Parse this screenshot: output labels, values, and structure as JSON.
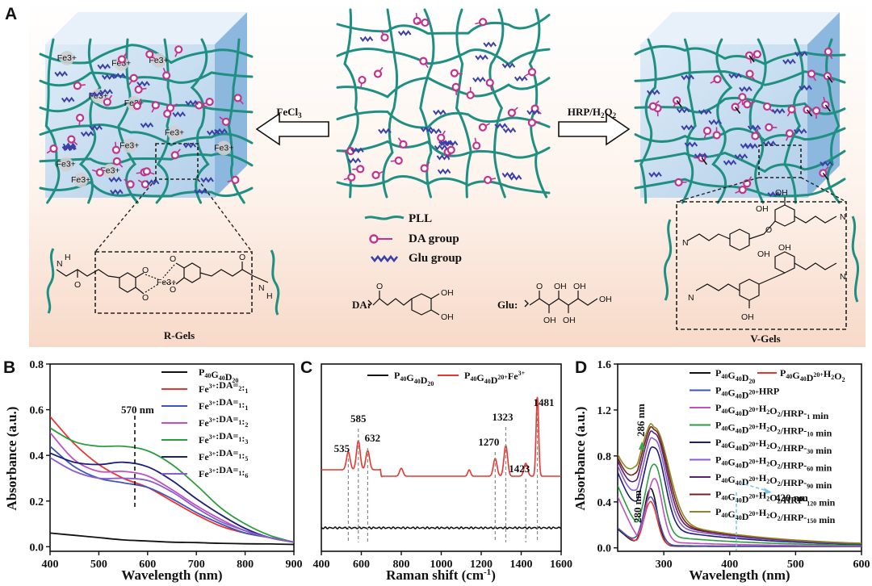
{
  "panel_a": {
    "label": "A",
    "reagent_left": "FeCl3",
    "reagent_right": "HRP/H2O2",
    "left_gel_name": "R-Gels",
    "right_gel_name": "V-Gels",
    "fe_label": "Fe3+",
    "legend": [
      {
        "label": "PLL",
        "color": "#1f8f82"
      },
      {
        "label": "DA group",
        "color": "#c2338f"
      },
      {
        "label": "Glu group",
        "color": "#3b3fa8"
      }
    ],
    "da_label": "DA:",
    "glu_label": "Glu:",
    "chem_text": {
      "oh": "OH",
      "o": "O",
      "h": "H",
      "n": "N",
      "fe": "Fe3+"
    }
  },
  "chart_data": [
    {
      "panel": "B",
      "type": "line",
      "xlabel": "Wavelength (nm)",
      "ylabel": "Absorbance (a.u.)",
      "xlim": [
        400,
        900
      ],
      "ylim": [
        -0.02,
        0.8
      ],
      "xticks": [
        "400",
        "500",
        "600",
        "700",
        "800",
        "900"
      ],
      "yticks": [
        "0.0",
        "0.2",
        "0.4",
        "0.6",
        "0.8"
      ],
      "annotation": "570 nm",
      "annotation_x": 570,
      "legend_position": "top-right",
      "x": [
        400,
        450,
        500,
        550,
        600,
        650,
        700,
        750,
        800,
        850,
        900
      ],
      "series": [
        {
          "name": "P40G40D20",
          "color": "#111111",
          "values": [
            0.06,
            0.05,
            0.04,
            0.03,
            0.025,
            0.02,
            0.018,
            0.015,
            0.013,
            0.012,
            0.01
          ]
        },
        {
          "name": "Fe3+:DA=2:1",
          "color": "#e8362f",
          "values": [
            0.57,
            0.45,
            0.36,
            0.3,
            0.26,
            0.2,
            0.14,
            0.09,
            0.06,
            0.04,
            0.02
          ]
        },
        {
          "name": "Fe3+:DA=1:1",
          "color": "#3d56b8",
          "values": [
            0.44,
            0.35,
            0.3,
            0.28,
            0.26,
            0.21,
            0.15,
            0.1,
            0.06,
            0.04,
            0.02
          ]
        },
        {
          "name": "Fe3+:DA=1:2",
          "color": "#c04fc0",
          "values": [
            0.5,
            0.38,
            0.33,
            0.33,
            0.31,
            0.25,
            0.18,
            0.12,
            0.07,
            0.04,
            0.02
          ]
        },
        {
          "name": "Fe3+:DA=1:3",
          "color": "#2a9d3f",
          "values": [
            0.52,
            0.46,
            0.44,
            0.44,
            0.42,
            0.36,
            0.27,
            0.17,
            0.1,
            0.05,
            0.02
          ]
        },
        {
          "name": "Fe3+:DA=1:5",
          "color": "#1b1f7a",
          "values": [
            0.41,
            0.37,
            0.36,
            0.37,
            0.35,
            0.29,
            0.21,
            0.14,
            0.08,
            0.04,
            0.02
          ]
        },
        {
          "name": "Fe3+:DA=1:6",
          "color": "#8b5ccf",
          "values": [
            0.39,
            0.33,
            0.3,
            0.3,
            0.29,
            0.24,
            0.17,
            0.11,
            0.07,
            0.04,
            0.02
          ]
        }
      ]
    },
    {
      "panel": "C",
      "type": "line",
      "xlabel": "Raman shift (cm-1)",
      "ylabel": "",
      "xlim": [
        400,
        1600
      ],
      "xticks": [
        "400",
        "600",
        "800",
        "1000",
        "1200",
        "1400",
        "1600"
      ],
      "legend_position": "top",
      "series": [
        {
          "name": "P40G40D20",
          "color": "#111111"
        },
        {
          "name": "P40G40D20+Fe3+",
          "color": "#e8362f"
        }
      ],
      "peaks": [
        {
          "x": 535,
          "label": "535"
        },
        {
          "x": 585,
          "label": "585"
        },
        {
          "x": 632,
          "label": "632"
        },
        {
          "x": 1270,
          "label": "1270"
        },
        {
          "x": 1323,
          "label": "1323"
        },
        {
          "x": 1423,
          "label": "1423"
        },
        {
          "x": 1481,
          "label": "1481"
        }
      ]
    },
    {
      "panel": "D",
      "type": "line",
      "xlabel": "Wavelength (nm)",
      "ylabel": "Absorbance (a.u.)",
      "xlim": [
        230,
        600
      ],
      "ylim": [
        -0.03,
        1.6
      ],
      "xticks": [
        "300",
        "400",
        "500",
        "600"
      ],
      "yticks": [
        "0.0",
        "0.4",
        "0.8",
        "1.2",
        "1.6"
      ],
      "annotations": [
        {
          "text": "286 nm",
          "x": 286
        },
        {
          "text": "280 nm",
          "x": 280
        },
        {
          "text": "420 nm",
          "x": 420
        }
      ],
      "legend_position": "top-right",
      "series": [
        {
          "name": "P40G40D20",
          "color": "#111111"
        },
        {
          "name": "P40G40D20+H2O2",
          "color": "#e8362f"
        },
        {
          "name": "P40G40D20+HRP",
          "color": "#3d56b8"
        },
        {
          "name": "P40G40D20+H2O2/HRP-1 min",
          "color": "#c04fc0"
        },
        {
          "name": "P40G40D20+H2O2/HRP-10 min",
          "color": "#2a9d3f"
        },
        {
          "name": "P40G40D20+H2O2/HRP-30 min",
          "color": "#1b1f7a"
        },
        {
          "name": "P40G40D20+H2O2/HRP-60 min",
          "color": "#8b5ccf"
        },
        {
          "name": "P40G40D20+H2O2/HRP-90 min",
          "color": "#5a1f6e"
        },
        {
          "name": "P40G40D20+H2O2/HRP-120 min",
          "color": "#7a2020"
        },
        {
          "name": "P40G40D20+H2O2/HRP-150 min",
          "color": "#8a8a1e"
        }
      ]
    }
  ]
}
